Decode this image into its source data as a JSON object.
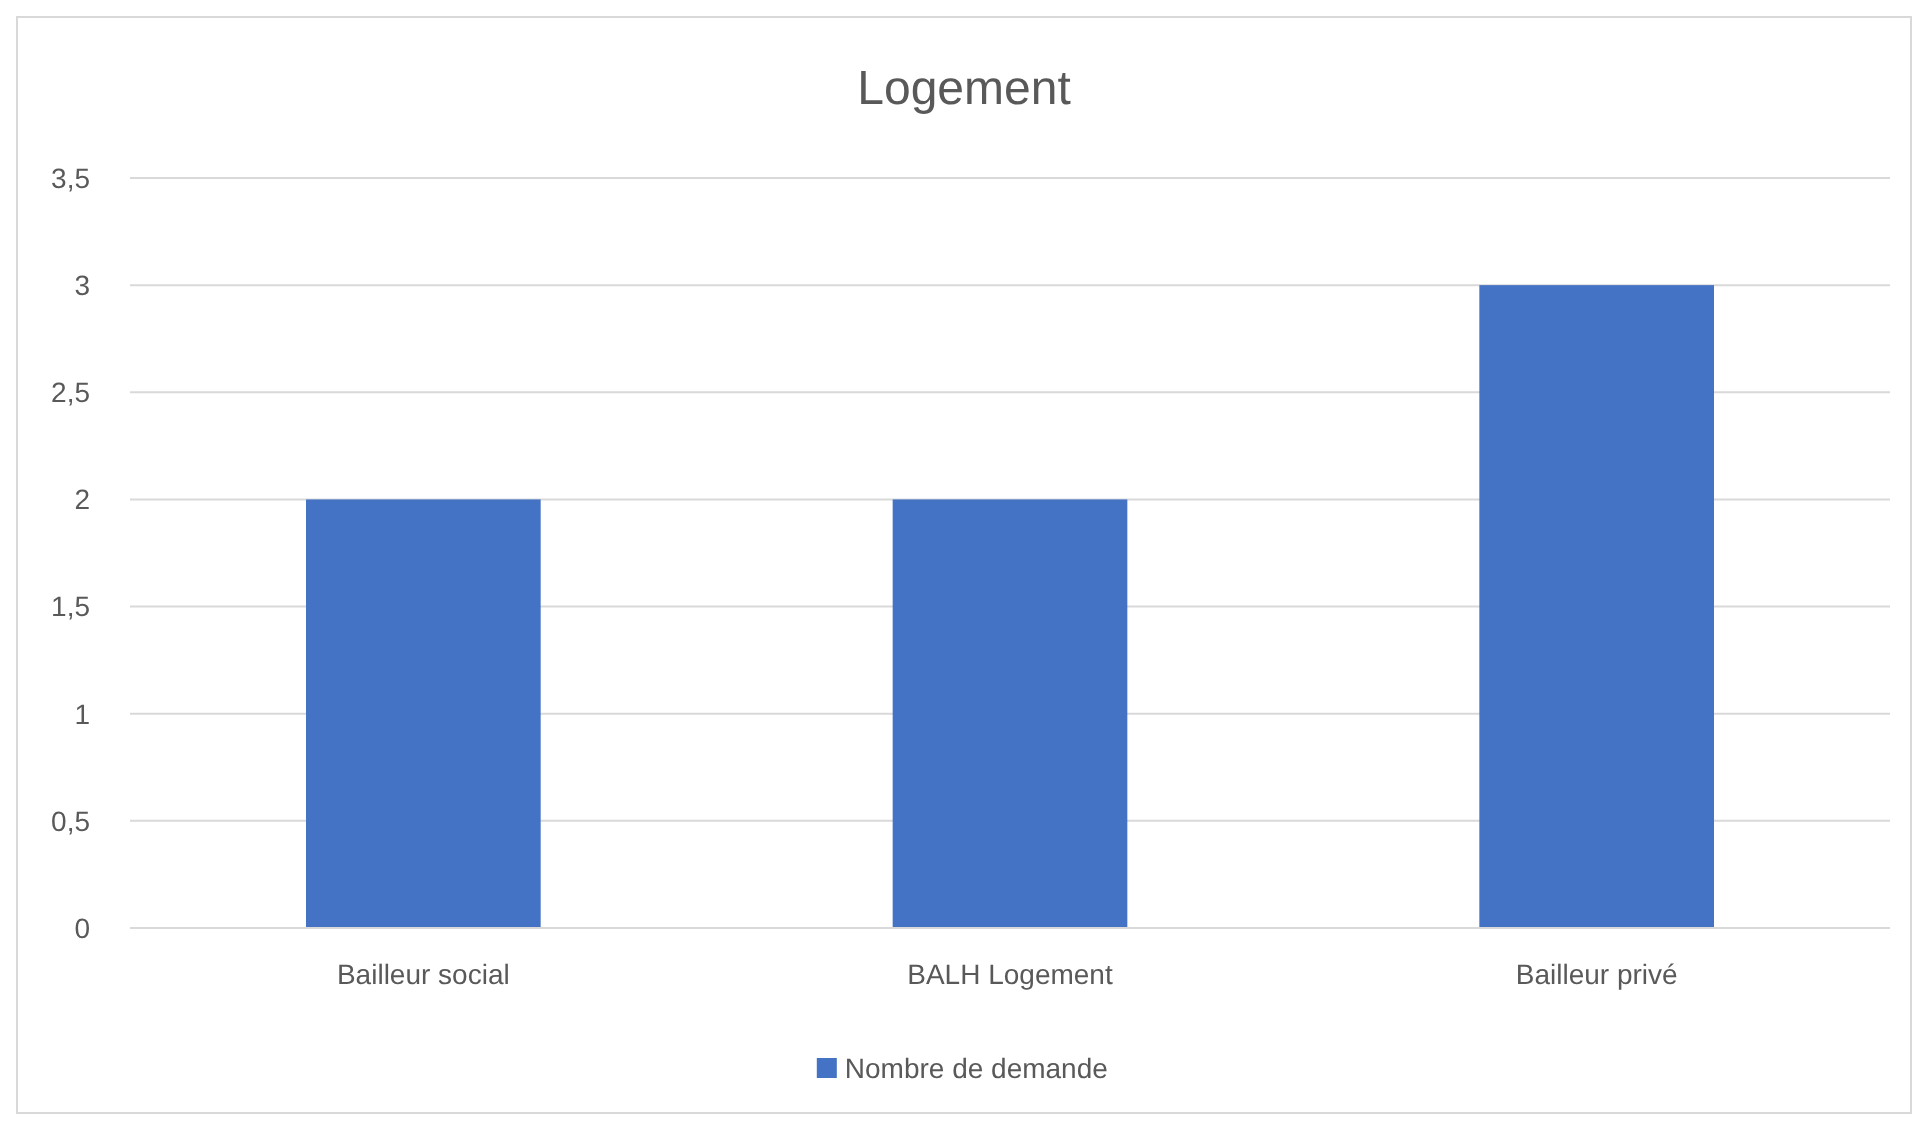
{
  "chart_data": {
    "type": "bar",
    "title": "Logement",
    "categories": [
      "Bailleur social",
      "BALH Logement",
      "Bailleur privé"
    ],
    "series": [
      {
        "name": "Nombre de demande",
        "color": "#4472c4",
        "values": [
          2,
          2,
          3
        ]
      }
    ],
    "ylim": [
      0,
      3.5
    ],
    "yticks": [
      0,
      {
        "value": 0.5,
        "label": "0,5"
      },
      1,
      {
        "value": 1.5,
        "label": "1,5"
      },
      2,
      {
        "value": 2.5,
        "label": "2,5"
      },
      3,
      {
        "value": 3.5,
        "label": "3,5"
      }
    ],
    "grid": "y",
    "legend": "bottom"
  }
}
